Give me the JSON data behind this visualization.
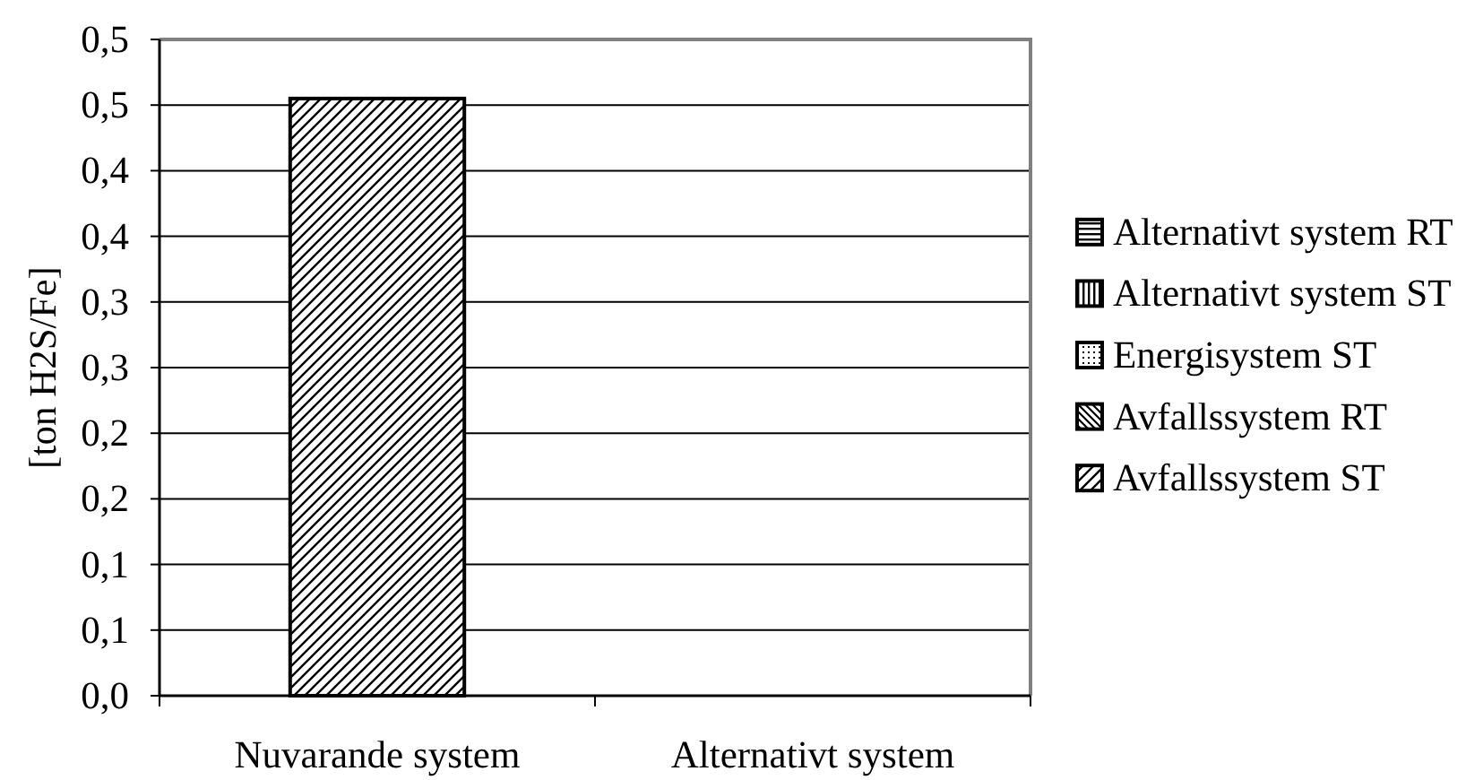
{
  "chart_data": {
    "type": "bar",
    "stacked": true,
    "categories": [
      "Nuvarande system",
      "Alternativt system"
    ],
    "series": [
      {
        "name": "Avfallssystem ST",
        "color": "#000000",
        "values": [
          0.455,
          0
        ]
      },
      {
        "name": "Avfallssystem RT",
        "color": "#000000",
        "values": [
          0,
          0
        ]
      },
      {
        "name": "Energisystem ST",
        "color": "#000000",
        "values": [
          0,
          0
        ]
      },
      {
        "name": "Alternativt system ST",
        "color": "#000000",
        "values": [
          0,
          0
        ]
      },
      {
        "name": "Alternativt system RT",
        "color": "#000000",
        "values": [
          0,
          0
        ]
      }
    ],
    "ylabel": "[ton H2S/Fe]",
    "ylim": [
      0,
      0.5
    ],
    "yticks": [
      {
        "value": 0,
        "label": "0,0"
      },
      {
        "value": 0.05,
        "label": "0,1"
      },
      {
        "value": 0.1,
        "label": "0,1"
      },
      {
        "value": 0.15,
        "label": "0,2"
      },
      {
        "value": 0.2,
        "label": "0,2"
      },
      {
        "value": 0.25,
        "label": "0,3"
      },
      {
        "value": 0.3,
        "label": "0,3"
      },
      {
        "value": 0.35,
        "label": "0,4"
      },
      {
        "value": 0.4,
        "label": "0,4"
      },
      {
        "value": 0.45,
        "label": "0,5"
      },
      {
        "value": 0.5,
        "label": "0,5"
      }
    ],
    "grid": "y",
    "legend": "right"
  }
}
